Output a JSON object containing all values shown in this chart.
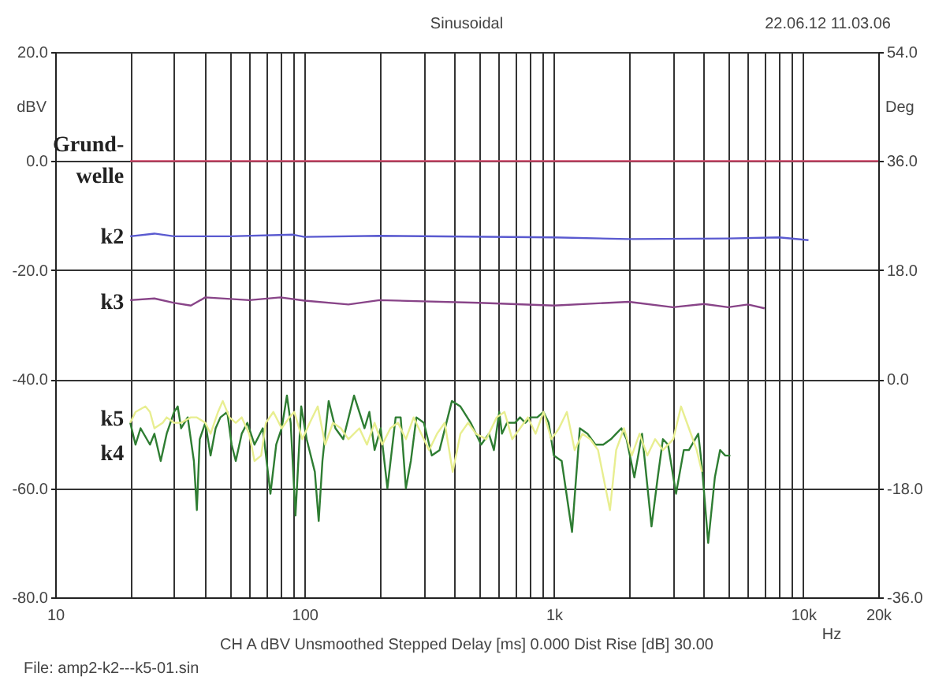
{
  "chart_data": {
    "type": "line",
    "title": "Sinusoidal",
    "xlabel": "Hz",
    "ylabel": "dBV",
    "y2label": "Deg",
    "log": "x",
    "grid": true,
    "legend": false,
    "xlim": [
      10,
      20000
    ],
    "xticks": [
      10,
      100,
      {
        "value": 20,
        "label": null
      },
      {
        "value": 30,
        "label": null
      },
      {
        "value": 40,
        "label": null
      },
      {
        "value": 50,
        "label": null
      },
      {
        "value": 60,
        "label": null
      },
      {
        "value": 70,
        "label": null
      },
      {
        "value": 80,
        "label": null
      },
      {
        "value": 90,
        "label": null
      },
      {
        "value": 200,
        "label": null
      },
      {
        "value": 300,
        "label": null
      },
      {
        "value": 400,
        "label": null
      },
      {
        "value": 500,
        "label": null
      },
      {
        "value": 600,
        "label": null
      },
      {
        "value": 700,
        "label": null
      },
      {
        "value": 800,
        "label": null
      },
      {
        "value": 900,
        "label": null
      },
      {
        "value": 1000,
        "label": "1k"
      },
      {
        "value": 2000,
        "label": null
      },
      {
        "value": 3000,
        "label": null
      },
      {
        "value": 4000,
        "label": null
      },
      {
        "value": 5000,
        "label": null
      },
      {
        "value": 6000,
        "label": null
      },
      {
        "value": 7000,
        "label": null
      },
      {
        "value": 8000,
        "label": null
      },
      {
        "value": 9000,
        "label": null
      },
      {
        "value": 10000,
        "label": "10k"
      },
      {
        "value": 20000,
        "label": "20k"
      }
    ],
    "ylim": [
      -80,
      20
    ],
    "yticks": [
      {
        "value": -80,
        "label": "-80.0"
      },
      {
        "value": -60,
        "label": "-60.0"
      },
      {
        "value": -40,
        "label": "-40.0"
      },
      {
        "value": -20,
        "label": "-20.0"
      },
      {
        "value": 0,
        "label": "0.0"
      },
      {
        "value": 20,
        "label": "20.0"
      }
    ],
    "y2lim": [
      -36,
      54
    ],
    "y2ticks": [
      {
        "value": -36,
        "label": "-36.0"
      },
      {
        "value": -18,
        "label": "-18.0"
      },
      {
        "value": 0,
        "label": "0.0"
      },
      {
        "value": 18,
        "label": "18.0"
      },
      {
        "value": 36,
        "label": "36.0"
      },
      {
        "value": 54,
        "label": "54.0"
      }
    ],
    "annotations": [
      "22.06.12 11.03.06",
      "CH A   dBV   Unsmoothed   Stepped   Delay [ms] 0.000   Dist Rise [dB] 30.00",
      "File: amp2-k2---k5-01.sin"
    ],
    "series": [
      {
        "name": "Grund-welle",
        "color": "#cc4466",
        "x": [
          20,
          20000
        ],
        "values": [
          0,
          0
        ]
      },
      {
        "name": "k2",
        "color": "#5a5ad0",
        "x": [
          20,
          25,
          30,
          50,
          90,
          100,
          200,
          1000,
          2000,
          5000,
          8000,
          10500
        ],
        "values": [
          -13.8,
          -13.3,
          -13.8,
          -13.8,
          -13.5,
          -13.9,
          -13.7,
          -14,
          -14.3,
          -14.2,
          -14,
          -14.5
        ]
      },
      {
        "name": "k3",
        "color": "#884488",
        "x": [
          20,
          25,
          30,
          35,
          40,
          60,
          80,
          100,
          150,
          200,
          500,
          1000,
          2000,
          3000,
          4000,
          5000,
          6000,
          7000
        ],
        "values": [
          -25.5,
          -25.2,
          -26,
          -26.5,
          -25,
          -25.5,
          -25,
          -25.6,
          -26.3,
          -25.5,
          -26,
          -26.5,
          -25.8,
          -26.8,
          -26.2,
          -26.8,
          -26.3,
          -27
        ]
      },
      {
        "name": "k4",
        "color": "#2e7d32",
        "x": [
          20,
          21,
          22,
          24,
          25,
          26.5,
          28,
          30,
          31,
          32,
          34,
          36,
          37,
          38,
          40,
          42,
          44,
          46,
          49,
          51,
          53,
          56,
          59,
          63,
          68,
          73,
          77,
          81,
          85,
          88,
          92,
          97,
          102,
          110,
          114,
          118,
          125,
          133,
          143,
          158,
          174,
          182,
          191,
          202,
          215,
          232,
          243,
          255,
          267,
          281,
          301,
          324,
          348,
          390,
          422,
          464,
          511,
          549,
          575,
          604,
          619,
          649,
          698,
          732,
          768,
          806,
          858,
          909,
          953,
          1000,
          1075,
          1183,
          1271,
          1365,
          1468,
          1578,
          1694,
          1778,
          1866,
          1957,
          2103,
          2258,
          2464,
          2610,
          2738,
          2871,
          3091,
          3320,
          3481,
          3795,
          3926,
          4159,
          4423,
          4642,
          4870,
          5105
        ],
        "values": [
          -48,
          -52,
          -49,
          -52,
          -50,
          -55,
          -50,
          -46,
          -45,
          -49,
          -47,
          -55,
          -64,
          -51,
          -48,
          -54,
          -49,
          -47,
          -46,
          -52,
          -55,
          -50,
          -48,
          -52,
          -49,
          -61,
          -52,
          -49,
          -43,
          -48,
          -65,
          -45,
          -51,
          -57,
          -66,
          -55,
          -44,
          -49,
          -51,
          -43,
          -49,
          -46,
          -53,
          -49,
          -60,
          -47,
          -47,
          -60,
          -55,
          -47,
          -48,
          -54,
          -53,
          -44,
          -45,
          -48,
          -52,
          -50,
          -53,
          -46,
          -50,
          -48,
          -48,
          -47,
          -48,
          -47,
          -47,
          -46,
          -48,
          -54,
          -55,
          -68,
          -49,
          -50,
          -52,
          -52,
          -51,
          -50,
          -49,
          -51,
          -58,
          -50,
          -67,
          -58,
          -51,
          -52,
          -61,
          -53,
          -53,
          -50,
          -56,
          -70,
          -58,
          -53,
          -54,
          -54
        ]
      },
      {
        "name": "k5",
        "color": "#e8ee90",
        "x": [
          20,
          21,
          23,
          24,
          25,
          27,
          28,
          30,
          32,
          35,
          37,
          40,
          42,
          45,
          47,
          50,
          53,
          56,
          60,
          63,
          67,
          70,
          75,
          81,
          87,
          91,
          98,
          105,
          113,
          121,
          130,
          140,
          150,
          166,
          178,
          191,
          205,
          221,
          237,
          255,
          274,
          294,
          316,
          340,
          365,
          393,
          422,
          453,
          487,
          536,
          590,
          634,
          681,
          732,
          787,
          845,
          909,
          977,
          1049,
          1128,
          1212,
          1302,
          1399,
          1504,
          1679,
          1778,
          1911,
          2054,
          2207,
          2371,
          2548,
          2738,
          3013,
          3237,
          3481,
          3741,
          3926
        ],
        "values": [
          -48,
          -46,
          -45,
          -46,
          -49,
          -48,
          -47,
          -48,
          -48,
          -47,
          -47,
          -48,
          -50,
          -46,
          -44,
          -47,
          -48,
          -47,
          -50,
          -55,
          -54,
          -48,
          -46,
          -49,
          -47,
          -46,
          -51,
          -48,
          -45,
          -52,
          -48,
          -49,
          -51,
          -49,
          -52,
          -48,
          -52,
          -49,
          -48,
          -51,
          -47,
          -50,
          -53,
          -50,
          -48,
          -57,
          -50,
          -48,
          -50,
          -51,
          -47,
          -46,
          -51,
          -49,
          -47,
          -50,
          -46,
          -51,
          -49,
          -46,
          -53,
          -50,
          -51,
          -53,
          -64,
          -53,
          -49,
          -54,
          -50,
          -54,
          -51,
          -53,
          -51,
          -45,
          -49,
          -53,
          -57
        ]
      }
    ]
  }
}
